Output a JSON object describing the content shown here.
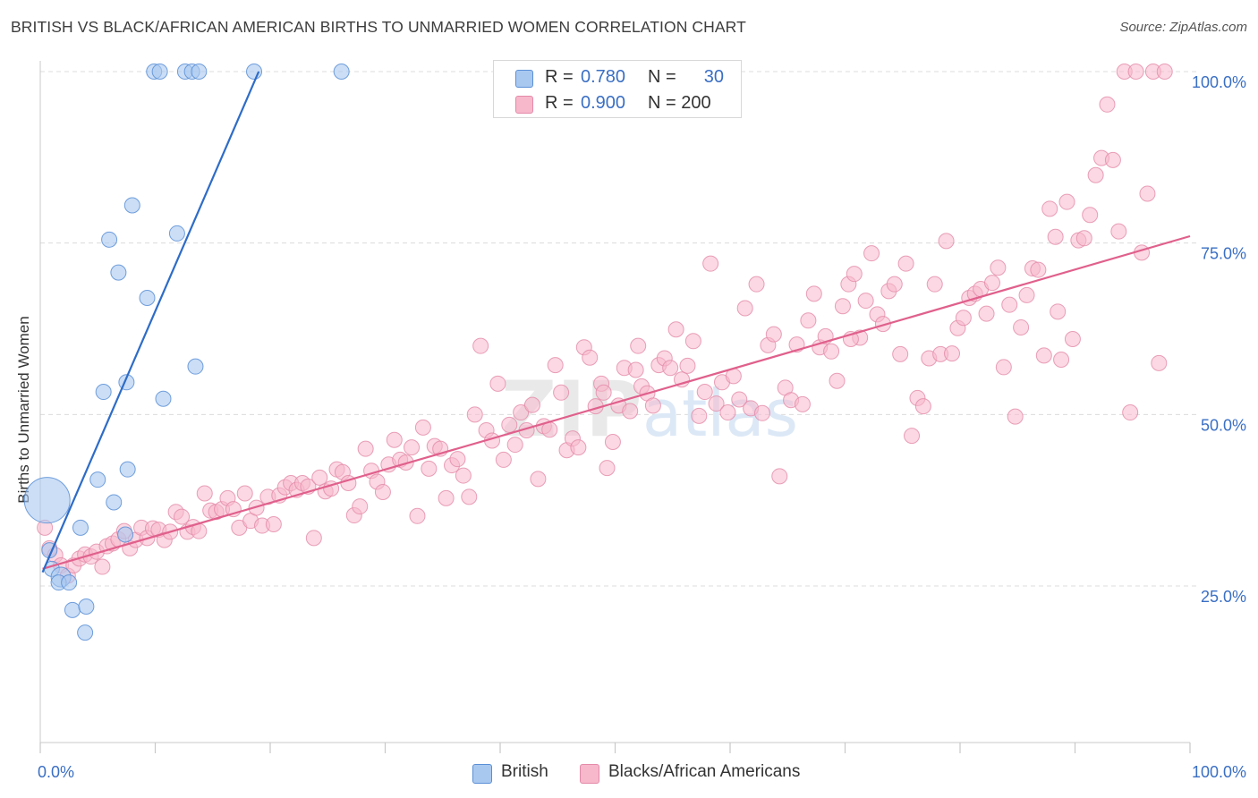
{
  "header": {
    "title": "BRITISH VS BLACK/AFRICAN AMERICAN BIRTHS TO UNMARRIED WOMEN CORRELATION CHART",
    "source": "Source: ZipAtlas.com"
  },
  "legend": {
    "british": {
      "r_label": "R =",
      "r_value": "0.780",
      "n_label": "N =",
      "n_value": "30"
    },
    "black": {
      "r_label": "R =",
      "r_value": "0.900",
      "n_label": "N = 200",
      "n_value": ""
    }
  },
  "colors": {
    "british_fill": "#a9c8f0",
    "british_stroke": "#5a8fd6",
    "british_line": "#2e6cc7",
    "black_fill": "#f7b8cc",
    "black_stroke": "#e48aa8",
    "black_line": "#e0608c",
    "tick_label": "#3a6fc4",
    "grid": "#dcdcdc"
  },
  "watermark": {
    "zip": "ZIP",
    "atlas": "atlas"
  },
  "chart_data": {
    "type": "scatter",
    "title": "BRITISH VS BLACK/AFRICAN AMERICAN BIRTHS TO UNMARRIED WOMEN CORRELATION CHART",
    "xlabel": "",
    "ylabel": "Births to Unmarried Women",
    "xlim": [
      0,
      100
    ],
    "ylim": [
      0,
      105
    ],
    "x_tick_labels": [
      "0.0%",
      "100.0%"
    ],
    "y_ticks": [
      25,
      50,
      75,
      100
    ],
    "y_tick_labels": [
      "25.0%",
      "50.0%",
      "75.0%",
      "100.0%"
    ],
    "grid": true,
    "legend_placement": "top-center and bottom",
    "series": [
      {
        "name": "British",
        "trend": {
          "x0": 0.2,
          "y0": 27,
          "x1": 19,
          "y1": 100
        },
        "points": [
          [
            0.6,
            37.5,
            3
          ],
          [
            0.8,
            30.2,
            1
          ],
          [
            1.0,
            27.5,
            1
          ],
          [
            1.8,
            26.3,
            1.3
          ],
          [
            1.6,
            25.5,
            1
          ],
          [
            2.5,
            25.5,
            1
          ],
          [
            2.8,
            21.5,
            1
          ],
          [
            3.5,
            33.5,
            1
          ],
          [
            4.0,
            22,
            1
          ],
          [
            3.9,
            18.2,
            1
          ],
          [
            5.0,
            40.5,
            1
          ],
          [
            5.5,
            53.3,
            1
          ],
          [
            6.4,
            37.2,
            1
          ],
          [
            7.4,
            32.5,
            1
          ],
          [
            7.6,
            42,
            1
          ],
          [
            6.0,
            75.5,
            1
          ],
          [
            6.8,
            70.7,
            1
          ],
          [
            7.5,
            54.7,
            1
          ],
          [
            8.0,
            80.5,
            1
          ],
          [
            9.3,
            67,
            1
          ],
          [
            10.7,
            52.3,
            1
          ],
          [
            11.9,
            76.4,
            1
          ],
          [
            13.5,
            57,
            1
          ],
          [
            9.9,
            100,
            1
          ],
          [
            10.4,
            100,
            1
          ],
          [
            12.6,
            100,
            1
          ],
          [
            13.2,
            100,
            1
          ],
          [
            13.8,
            100,
            1
          ],
          [
            18.6,
            100,
            1
          ],
          [
            26.2,
            100,
            1
          ]
        ]
      },
      {
        "name": "Blacks/African Americans",
        "trend": {
          "x0": 0.2,
          "y0": 27.5,
          "x1": 100,
          "y1": 76
        },
        "points": [
          [
            0.4,
            33.5
          ],
          [
            0.8,
            30.5
          ],
          [
            1.3,
            29.5
          ],
          [
            1.8,
            28
          ],
          [
            2.4,
            26.5
          ],
          [
            2.9,
            28
          ],
          [
            3.4,
            29
          ],
          [
            3.9,
            29.6
          ],
          [
            4.4,
            29.3
          ],
          [
            4.9,
            30
          ],
          [
            5.4,
            27.8
          ],
          [
            5.8,
            30.8
          ],
          [
            6.3,
            31.2
          ],
          [
            6.8,
            31.8
          ],
          [
            7.3,
            33
          ],
          [
            7.8,
            30.5
          ],
          [
            8.3,
            31.7
          ],
          [
            8.8,
            33.5
          ],
          [
            9.3,
            32
          ],
          [
            9.8,
            33.4
          ],
          [
            10.3,
            33.2
          ],
          [
            10.8,
            31.7
          ],
          [
            11.3,
            32.9
          ],
          [
            11.8,
            35.8
          ],
          [
            12.3,
            35.1
          ],
          [
            12.8,
            32.9
          ],
          [
            13.3,
            33.6
          ],
          [
            13.8,
            33
          ],
          [
            14.3,
            38.5
          ],
          [
            14.8,
            36
          ],
          [
            15.3,
            35.8
          ],
          [
            15.8,
            36.2
          ],
          [
            16.3,
            37.8
          ],
          [
            16.8,
            36.2
          ],
          [
            17.3,
            33.5
          ],
          [
            17.8,
            38.5
          ],
          [
            18.3,
            34.5
          ],
          [
            18.8,
            36.4
          ],
          [
            19.3,
            33.8
          ],
          [
            19.8,
            38
          ],
          [
            20.3,
            34
          ],
          [
            20.8,
            38.2
          ],
          [
            21.3,
            39.4
          ],
          [
            21.8,
            40
          ],
          [
            22.3,
            39
          ],
          [
            22.8,
            40
          ],
          [
            23.3,
            39.5
          ],
          [
            23.8,
            32
          ],
          [
            24.3,
            40.8
          ],
          [
            24.8,
            38.8
          ],
          [
            25.3,
            39.2
          ],
          [
            25.8,
            42
          ],
          [
            26.3,
            41.6
          ],
          [
            26.8,
            40
          ],
          [
            27.3,
            35.3
          ],
          [
            27.8,
            36.6
          ],
          [
            28.3,
            45
          ],
          [
            28.8,
            41.8
          ],
          [
            29.3,
            40.2
          ],
          [
            29.8,
            38.7
          ],
          [
            30.3,
            42.7
          ],
          [
            30.8,
            46.3
          ],
          [
            31.3,
            43.4
          ],
          [
            31.8,
            43
          ],
          [
            32.3,
            45.2
          ],
          [
            32.8,
            35.2
          ],
          [
            33.3,
            48.1
          ],
          [
            33.8,
            42.1
          ],
          [
            34.3,
            45.4
          ],
          [
            34.8,
            45
          ],
          [
            35.3,
            37.8
          ],
          [
            35.8,
            42.6
          ],
          [
            36.3,
            43.5
          ],
          [
            36.8,
            41.1
          ],
          [
            37.3,
            38
          ],
          [
            37.8,
            50
          ],
          [
            38.3,
            60
          ],
          [
            38.8,
            47.7
          ],
          [
            39.3,
            46.2
          ],
          [
            39.8,
            54.5
          ],
          [
            40.3,
            43.4
          ],
          [
            40.8,
            48.5
          ],
          [
            41.3,
            45.6
          ],
          [
            41.8,
            50.3
          ],
          [
            42.3,
            47.7
          ],
          [
            42.8,
            51.4
          ],
          [
            43.3,
            40.6
          ],
          [
            43.8,
            48.3
          ],
          [
            44.3,
            47.8
          ],
          [
            44.8,
            57.2
          ],
          [
            45.3,
            53.2
          ],
          [
            45.8,
            44.8
          ],
          [
            46.3,
            46.5
          ],
          [
            46.8,
            45.2
          ],
          [
            47.3,
            59.8
          ],
          [
            47.8,
            58.3
          ],
          [
            48.3,
            51.2
          ],
          [
            48.8,
            54.5
          ],
          [
            49.3,
            42.2
          ],
          [
            49.8,
            46
          ],
          [
            50.3,
            51.3
          ],
          [
            50.8,
            56.8
          ],
          [
            51.3,
            50.5
          ],
          [
            51.8,
            56.5
          ],
          [
            52.3,
            54.1
          ],
          [
            52.8,
            53.1
          ],
          [
            53.3,
            51.3
          ],
          [
            53.8,
            57.2
          ],
          [
            54.3,
            58.2
          ],
          [
            54.8,
            56.8
          ],
          [
            55.3,
            62.4
          ],
          [
            55.8,
            55.1
          ],
          [
            56.3,
            57.1
          ],
          [
            56.8,
            60.7
          ],
          [
            57.3,
            49.8
          ],
          [
            57.8,
            53.3
          ],
          [
            58.3,
            72
          ],
          [
            58.8,
            51.6
          ],
          [
            59.3,
            54.7
          ],
          [
            59.8,
            50.3
          ],
          [
            60.3,
            55.6
          ],
          [
            60.8,
            52.2
          ],
          [
            61.3,
            65.5
          ],
          [
            61.8,
            50.9
          ],
          [
            62.3,
            69
          ],
          [
            62.8,
            50.2
          ],
          [
            63.3,
            60.1
          ],
          [
            63.8,
            61.7
          ],
          [
            64.3,
            41
          ],
          [
            64.8,
            53.9
          ],
          [
            65.3,
            52.1
          ],
          [
            65.8,
            60.2
          ],
          [
            66.3,
            51.5
          ],
          [
            66.8,
            63.7
          ],
          [
            67.3,
            67.6
          ],
          [
            67.8,
            59.8
          ],
          [
            68.3,
            61.4
          ],
          [
            68.8,
            59.2
          ],
          [
            69.3,
            54.9
          ],
          [
            69.8,
            65.8
          ],
          [
            70.3,
            69
          ],
          [
            70.8,
            70.5
          ],
          [
            71.3,
            61.2
          ],
          [
            71.8,
            66.6
          ],
          [
            72.3,
            73.5
          ],
          [
            72.8,
            64.6
          ],
          [
            73.3,
            63.2
          ],
          [
            73.8,
            68
          ],
          [
            74.3,
            69
          ],
          [
            74.8,
            58.8
          ],
          [
            75.3,
            72
          ],
          [
            75.8,
            46.9
          ],
          [
            76.3,
            52.4
          ],
          [
            76.8,
            51.2
          ],
          [
            77.3,
            58.2
          ],
          [
            77.8,
            69
          ],
          [
            78.3,
            58.8
          ],
          [
            78.8,
            75.3
          ],
          [
            79.3,
            58.9
          ],
          [
            79.8,
            62.6
          ],
          [
            80.3,
            64.1
          ],
          [
            80.8,
            67
          ],
          [
            81.3,
            67.6
          ],
          [
            81.8,
            68.3
          ],
          [
            82.3,
            64.7
          ],
          [
            82.8,
            69.2
          ],
          [
            83.3,
            71.4
          ],
          [
            83.8,
            56.9
          ],
          [
            84.3,
            66
          ],
          [
            84.8,
            49.7
          ],
          [
            85.3,
            62.7
          ],
          [
            85.8,
            67.4
          ],
          [
            86.3,
            71.3
          ],
          [
            86.8,
            71.1
          ],
          [
            87.3,
            58.6
          ],
          [
            87.8,
            80
          ],
          [
            88.3,
            75.9
          ],
          [
            88.8,
            58
          ],
          [
            89.3,
            81
          ],
          [
            89.8,
            61
          ],
          [
            90.3,
            75.4
          ],
          [
            90.8,
            75.7
          ],
          [
            91.3,
            79.1
          ],
          [
            91.8,
            84.9
          ],
          [
            92.3,
            87.4
          ],
          [
            92.8,
            95.2
          ],
          [
            93.3,
            87.1
          ],
          [
            93.8,
            76.7
          ],
          [
            94.3,
            100
          ],
          [
            94.8,
            50.3
          ],
          [
            95.3,
            100
          ],
          [
            95.8,
            73.6
          ],
          [
            96.3,
            82.2
          ],
          [
            96.8,
            100
          ],
          [
            97.3,
            57.5
          ],
          [
            97.8,
            100
          ],
          [
            70.5,
            61
          ],
          [
            52,
            60
          ],
          [
            49,
            53.2
          ],
          [
            88.5,
            65
          ]
        ]
      }
    ]
  }
}
